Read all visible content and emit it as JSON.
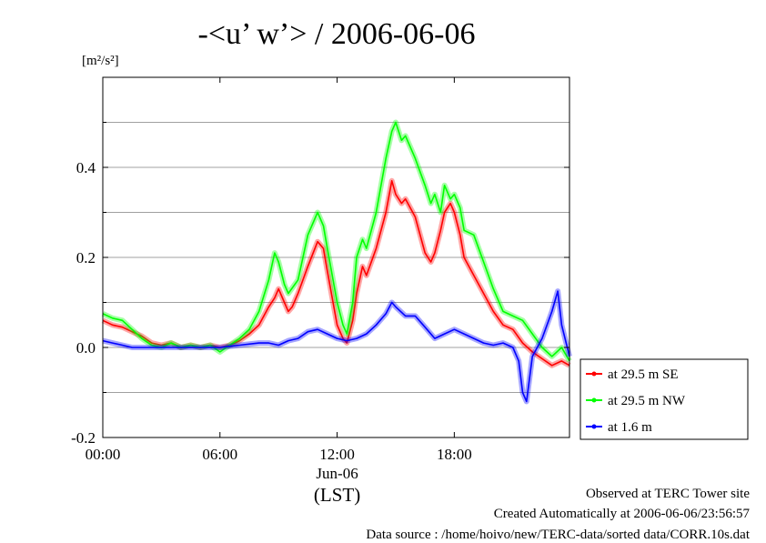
{
  "chart_data": {
    "type": "line",
    "title": "-<u’ w’> / 2006-06-06",
    "ylabel": "[m²/s²]",
    "xlabel": "(LST)",
    "x_date_label": "Jun-06",
    "x_unit": "hour",
    "xlim": [
      0,
      23.9
    ],
    "ylim": [
      -0.2,
      0.6
    ],
    "x_ticks": [
      {
        "value": 0,
        "label": "00:00"
      },
      {
        "value": 6,
        "label": "06:00"
      },
      {
        "value": 12,
        "label": "12:00"
      },
      {
        "value": 18,
        "label": "18:00"
      }
    ],
    "y_ticks": [
      {
        "value": -0.2,
        "label": "-0.2"
      },
      {
        "value": 0.0,
        "label": "0.0"
      },
      {
        "value": 0.2,
        "label": "0.2"
      },
      {
        "value": 0.4,
        "label": "0.4"
      }
    ],
    "y_grid": [
      -0.1,
      0.1,
      0.3,
      0.5
    ],
    "grid": true,
    "legend_placement": "right-bottom outside",
    "series": [
      {
        "name": "at 29.5 m SE",
        "color": "#ff0000",
        "points": [
          [
            0,
            0.06
          ],
          [
            0.5,
            0.05
          ],
          [
            1,
            0.045
          ],
          [
            1.5,
            0.035
          ],
          [
            2,
            0.025
          ],
          [
            2.5,
            0.01
          ],
          [
            3,
            0.005
          ],
          [
            3.5,
            0.01
          ],
          [
            4,
            0.0
          ],
          [
            4.5,
            0.005
          ],
          [
            5,
            0.0
          ],
          [
            5.5,
            0.005
          ],
          [
            6,
            0.0
          ],
          [
            6.5,
            0.005
          ],
          [
            7,
            0.015
          ],
          [
            7.5,
            0.03
          ],
          [
            8,
            0.05
          ],
          [
            8.5,
            0.09
          ],
          [
            8.8,
            0.11
          ],
          [
            9,
            0.13
          ],
          [
            9.3,
            0.1
          ],
          [
            9.5,
            0.08
          ],
          [
            9.7,
            0.09
          ],
          [
            10,
            0.12
          ],
          [
            10.5,
            0.18
          ],
          [
            11,
            0.235
          ],
          [
            11.3,
            0.22
          ],
          [
            11.5,
            0.17
          ],
          [
            12,
            0.05
          ],
          [
            12.3,
            0.02
          ],
          [
            12.5,
            0.01
          ],
          [
            12.8,
            0.06
          ],
          [
            13,
            0.12
          ],
          [
            13.3,
            0.18
          ],
          [
            13.5,
            0.16
          ],
          [
            14,
            0.22
          ],
          [
            14.5,
            0.3
          ],
          [
            14.8,
            0.37
          ],
          [
            15,
            0.34
          ],
          [
            15.3,
            0.32
          ],
          [
            15.5,
            0.33
          ],
          [
            16,
            0.29
          ],
          [
            16.5,
            0.21
          ],
          [
            16.8,
            0.19
          ],
          [
            17,
            0.21
          ],
          [
            17.3,
            0.26
          ],
          [
            17.5,
            0.3
          ],
          [
            17.8,
            0.32
          ],
          [
            18,
            0.3
          ],
          [
            18.3,
            0.25
          ],
          [
            18.5,
            0.2
          ],
          [
            19,
            0.16
          ],
          [
            19.5,
            0.12
          ],
          [
            20,
            0.08
          ],
          [
            20.5,
            0.05
          ],
          [
            21,
            0.04
          ],
          [
            21.5,
            0.01
          ],
          [
            22,
            -0.01
          ],
          [
            22.5,
            -0.025
          ],
          [
            23,
            -0.04
          ],
          [
            23.5,
            -0.03
          ],
          [
            23.9,
            -0.04
          ]
        ]
      },
      {
        "name": "at 29.5 m NW",
        "color": "#00ff00",
        "points": [
          [
            0,
            0.075
          ],
          [
            0.5,
            0.065
          ],
          [
            1,
            0.06
          ],
          [
            1.5,
            0.04
          ],
          [
            2,
            0.02
          ],
          [
            2.5,
            0.005
          ],
          [
            3,
            0.0
          ],
          [
            3.5,
            0.01
          ],
          [
            4,
            0.0
          ],
          [
            4.5,
            0.005
          ],
          [
            5,
            0.0
          ],
          [
            5.5,
            0.005
          ],
          [
            6,
            -0.01
          ],
          [
            6.5,
            0.005
          ],
          [
            7,
            0.02
          ],
          [
            7.5,
            0.04
          ],
          [
            8,
            0.08
          ],
          [
            8.5,
            0.15
          ],
          [
            8.8,
            0.21
          ],
          [
            9,
            0.19
          ],
          [
            9.3,
            0.14
          ],
          [
            9.5,
            0.12
          ],
          [
            10,
            0.15
          ],
          [
            10.5,
            0.25
          ],
          [
            11,
            0.3
          ],
          [
            11.3,
            0.27
          ],
          [
            11.5,
            0.22
          ],
          [
            12,
            0.1
          ],
          [
            12.3,
            0.05
          ],
          [
            12.5,
            0.03
          ],
          [
            12.8,
            0.1
          ],
          [
            13,
            0.2
          ],
          [
            13.3,
            0.24
          ],
          [
            13.5,
            0.22
          ],
          [
            14,
            0.3
          ],
          [
            14.5,
            0.42
          ],
          [
            14.8,
            0.48
          ],
          [
            15,
            0.5
          ],
          [
            15.3,
            0.46
          ],
          [
            15.5,
            0.47
          ],
          [
            16,
            0.42
          ],
          [
            16.5,
            0.36
          ],
          [
            16.8,
            0.32
          ],
          [
            17,
            0.34
          ],
          [
            17.3,
            0.3
          ],
          [
            17.5,
            0.36
          ],
          [
            17.8,
            0.33
          ],
          [
            18,
            0.34
          ],
          [
            18.3,
            0.31
          ],
          [
            18.5,
            0.26
          ],
          [
            19,
            0.25
          ],
          [
            19.5,
            0.19
          ],
          [
            20,
            0.13
          ],
          [
            20.5,
            0.08
          ],
          [
            21,
            0.07
          ],
          [
            21.5,
            0.06
          ],
          [
            22,
            0.03
          ],
          [
            22.5,
            0.0
          ],
          [
            23,
            -0.02
          ],
          [
            23.5,
            0.0
          ],
          [
            23.9,
            -0.03
          ]
        ]
      },
      {
        "name": "at 1.6 m",
        "color": "#0000ff",
        "points": [
          [
            0,
            0.015
          ],
          [
            0.5,
            0.01
          ],
          [
            1,
            0.005
          ],
          [
            1.5,
            0.0
          ],
          [
            2,
            0.0
          ],
          [
            3,
            0.0
          ],
          [
            4,
            0.0
          ],
          [
            5,
            0.0
          ],
          [
            6,
            0.0
          ],
          [
            7,
            0.005
          ],
          [
            8,
            0.01
          ],
          [
            8.5,
            0.01
          ],
          [
            9,
            0.005
          ],
          [
            9.5,
            0.015
          ],
          [
            10,
            0.02
          ],
          [
            10.5,
            0.035
          ],
          [
            11,
            0.04
          ],
          [
            11.5,
            0.03
          ],
          [
            12,
            0.02
          ],
          [
            12.5,
            0.015
          ],
          [
            13,
            0.02
          ],
          [
            13.5,
            0.03
          ],
          [
            14,
            0.05
          ],
          [
            14.5,
            0.075
          ],
          [
            14.8,
            0.1
          ],
          [
            15,
            0.09
          ],
          [
            15.5,
            0.07
          ],
          [
            16,
            0.07
          ],
          [
            16.5,
            0.045
          ],
          [
            17,
            0.02
          ],
          [
            17.5,
            0.03
          ],
          [
            18,
            0.04
          ],
          [
            18.5,
            0.03
          ],
          [
            19,
            0.02
          ],
          [
            19.5,
            0.01
          ],
          [
            20,
            0.005
          ],
          [
            20.5,
            0.01
          ],
          [
            21,
            0.0
          ],
          [
            21.3,
            -0.03
          ],
          [
            21.5,
            -0.1
          ],
          [
            21.7,
            -0.12
          ],
          [
            22,
            -0.02
          ],
          [
            22.5,
            0.02
          ],
          [
            23,
            0.08
          ],
          [
            23.3,
            0.125
          ],
          [
            23.5,
            0.05
          ],
          [
            23.9,
            -0.02
          ]
        ]
      }
    ]
  },
  "footer": {
    "site": "Observed at TERC Tower site",
    "created": "Created Automatically at 2006-06-06/23:56:57",
    "source": "Data source : /home/hoivo/new/TERC-data/sorted  data/CORR.10s.dat"
  }
}
